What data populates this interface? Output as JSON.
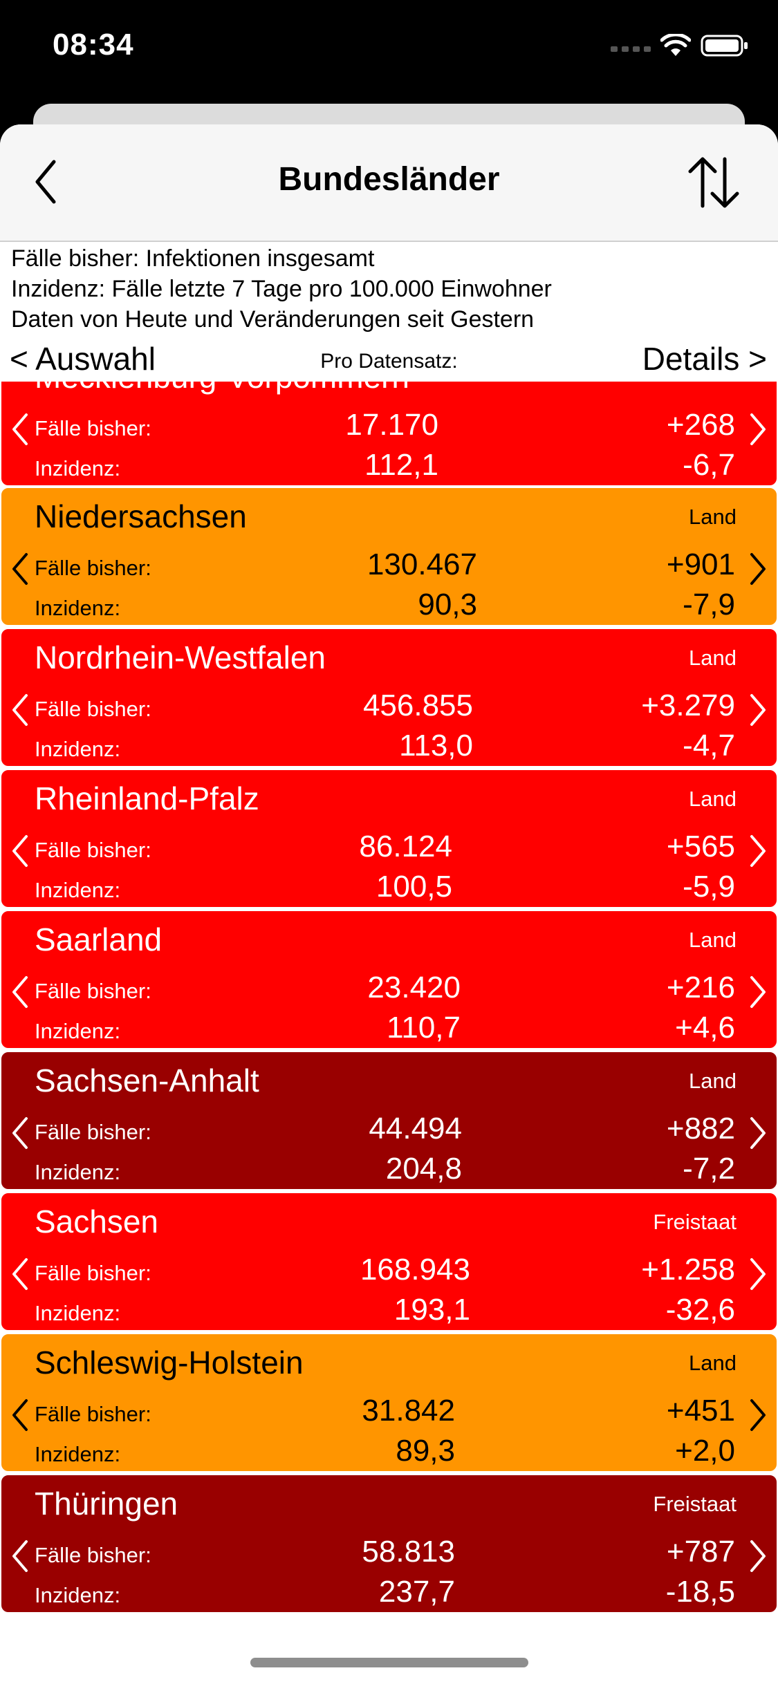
{
  "status_bar": {
    "time": "08:34"
  },
  "nav": {
    "title": "Bundesländer"
  },
  "info_lines": [
    "Fälle bisher: Infektionen insgesamt",
    "Inzidenz: Fälle letzte 7 Tage pro 100.000 Einwohner",
    "Daten von Heute und Veränderungen seit Gestern"
  ],
  "selector": {
    "left": "< Auswahl",
    "middle": "Pro Datensatz:",
    "right": "Details >"
  },
  "labels": {
    "cases": "Fälle bisher:",
    "incidence": "Inzidenz:"
  },
  "colors": {
    "red": "#ff0000",
    "orange": "#ff9500",
    "dark_red": "#990000"
  },
  "rows": [
    {
      "name": "Mecklenburg-Vorpommern",
      "type": "",
      "cases": "17.170",
      "cases_delta": "+268",
      "incidence": "112,1",
      "incidence_delta": "-6,7",
      "color": "red"
    },
    {
      "name": "Niedersachsen",
      "type": "Land",
      "cases": "130.467",
      "cases_delta": "+901",
      "incidence": "90,3",
      "incidence_delta": "-7,9",
      "color": "orange"
    },
    {
      "name": "Nordrhein-Westfalen",
      "type": "Land",
      "cases": "456.855",
      "cases_delta": "+3.279",
      "incidence": "113,0",
      "incidence_delta": "-4,7",
      "color": "red"
    },
    {
      "name": "Rheinland-Pfalz",
      "type": "Land",
      "cases": "86.124",
      "cases_delta": "+565",
      "incidence": "100,5",
      "incidence_delta": "-5,9",
      "color": "red"
    },
    {
      "name": "Saarland",
      "type": "Land",
      "cases": "23.420",
      "cases_delta": "+216",
      "incidence": "110,7",
      "incidence_delta": "+4,6",
      "color": "red"
    },
    {
      "name": "Sachsen-Anhalt",
      "type": "Land",
      "cases": "44.494",
      "cases_delta": "+882",
      "incidence": "204,8",
      "incidence_delta": "-7,2",
      "color": "dark"
    },
    {
      "name": "Sachsen",
      "type": "Freistaat",
      "cases": "168.943",
      "cases_delta": "+1.258",
      "incidence": "193,1",
      "incidence_delta": "-32,6",
      "color": "red"
    },
    {
      "name": "Schleswig-Holstein",
      "type": "Land",
      "cases": "31.842",
      "cases_delta": "+451",
      "incidence": "89,3",
      "incidence_delta": "+2,0",
      "color": "orange"
    },
    {
      "name": "Thüringen",
      "type": "Freistaat",
      "cases": "58.813",
      "cases_delta": "+787",
      "incidence": "237,7",
      "incidence_delta": "-18,5",
      "color": "dark"
    }
  ],
  "icons": [
    "back-chevron-icon",
    "sort-arrows-icon",
    "cellular-signal-icon",
    "wifi-icon",
    "battery-icon",
    "chevron-left-icon",
    "chevron-right-icon"
  ]
}
